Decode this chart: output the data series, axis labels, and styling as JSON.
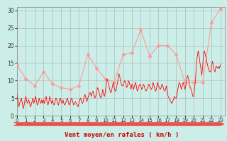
{
  "bg_color": "#cceee8",
  "grid_color": "#aaaaaa",
  "line1_color": "#ff0000",
  "line2_color": "#ff9999",
  "xlabel": "Vent moyen/en rafales ( km/h )",
  "xlabel_color": "#cc0000",
  "xlim": [
    0,
    23.5
  ],
  "ylim": [
    0,
    31
  ],
  "yticks": [
    0,
    5,
    10,
    15,
    20,
    25,
    30
  ],
  "xticks": [
    0,
    1,
    2,
    3,
    4,
    5,
    6,
    7,
    8,
    9,
    10,
    11,
    12,
    13,
    14,
    15,
    16,
    17,
    18,
    19,
    20,
    21,
    22,
    23
  ],
  "mean_x": [
    0,
    1,
    2,
    3,
    4,
    5,
    6,
    7,
    8,
    9,
    10,
    11,
    12,
    13,
    14,
    15,
    16,
    17,
    18,
    19,
    20,
    21,
    22,
    23
  ],
  "mean_y": [
    14.5,
    10.5,
    8.5,
    12.5,
    9.0,
    8.0,
    7.5,
    8.5,
    17.5,
    13.5,
    10.5,
    9.5,
    17.5,
    18.0,
    24.5,
    17.0,
    20.0,
    20.0,
    17.5,
    9.5,
    9.5,
    9.5,
    26.5,
    30.5
  ],
  "wind_x": [
    0.0,
    0.1,
    0.2,
    0.3,
    0.4,
    0.5,
    0.6,
    0.7,
    0.8,
    0.9,
    1.0,
    1.1,
    1.2,
    1.3,
    1.4,
    1.5,
    1.6,
    1.7,
    1.8,
    1.9,
    2.0,
    2.1,
    2.2,
    2.3,
    2.4,
    2.5,
    2.6,
    2.7,
    2.8,
    2.9,
    3.0,
    3.1,
    3.2,
    3.3,
    3.4,
    3.5,
    3.6,
    3.7,
    3.8,
    3.9,
    4.0,
    4.1,
    4.2,
    4.3,
    4.4,
    4.5,
    4.6,
    4.7,
    4.8,
    4.9,
    5.0,
    5.1,
    5.2,
    5.3,
    5.4,
    5.5,
    5.6,
    5.7,
    5.8,
    5.9,
    6.0,
    6.1,
    6.2,
    6.3,
    6.4,
    6.5,
    6.6,
    6.7,
    6.8,
    6.9,
    7.0,
    7.1,
    7.2,
    7.3,
    7.4,
    7.5,
    7.6,
    7.7,
    7.8,
    7.9,
    8.0,
    8.1,
    8.2,
    8.3,
    8.4,
    8.5,
    8.6,
    8.7,
    8.8,
    8.9,
    9.0,
    9.1,
    9.2,
    9.3,
    9.4,
    9.5,
    9.6,
    9.7,
    9.8,
    9.9,
    10.0,
    10.1,
    10.2,
    10.3,
    10.4,
    10.5,
    10.6,
    10.7,
    10.8,
    10.9,
    11.0,
    11.1,
    11.2,
    11.3,
    11.4,
    11.5,
    11.6,
    11.7,
    11.8,
    11.9,
    12.0,
    12.1,
    12.2,
    12.3,
    12.4,
    12.5,
    12.6,
    12.7,
    12.8,
    12.9,
    13.0,
    13.1,
    13.2,
    13.3,
    13.4,
    13.5,
    13.6,
    13.7,
    13.8,
    13.9,
    14.0,
    14.1,
    14.2,
    14.3,
    14.4,
    14.5,
    14.6,
    14.7,
    14.8,
    14.9,
    15.0,
    15.1,
    15.2,
    15.3,
    15.4,
    15.5,
    15.6,
    15.7,
    15.8,
    15.9,
    16.0,
    16.1,
    16.2,
    16.3,
    16.4,
    16.5,
    16.6,
    16.7,
    16.8,
    16.9,
    17.0,
    17.1,
    17.2,
    17.3,
    17.4,
    17.5,
    17.6,
    17.7,
    17.8,
    17.9,
    18.0,
    18.1,
    18.2,
    18.3,
    18.4,
    18.5,
    18.6,
    18.7,
    18.8,
    18.9,
    19.0,
    19.1,
    19.2,
    19.3,
    19.4,
    19.5,
    19.6,
    19.7,
    19.8,
    19.9,
    20.0,
    20.1,
    20.2,
    20.3,
    20.4,
    20.5,
    20.6,
    20.7,
    20.8,
    20.9,
    21.0,
    21.1,
    21.2,
    21.3,
    21.4,
    21.5,
    21.6,
    21.7,
    21.8,
    21.9,
    22.0,
    22.1,
    22.2,
    22.3,
    22.4,
    22.5,
    22.6,
    22.7,
    22.8,
    22.9,
    23.0
  ],
  "wind_y": [
    6.0,
    4.5,
    2.5,
    3.5,
    4.5,
    5.0,
    3.5,
    2.0,
    3.0,
    4.5,
    5.5,
    4.0,
    3.5,
    4.5,
    4.0,
    2.5,
    3.0,
    4.0,
    5.0,
    3.5,
    4.5,
    5.5,
    4.0,
    3.0,
    3.5,
    5.0,
    4.0,
    3.5,
    4.5,
    3.5,
    4.5,
    3.5,
    4.5,
    5.5,
    4.0,
    3.0,
    4.0,
    5.5,
    4.5,
    3.5,
    4.5,
    3.5,
    3.0,
    4.0,
    5.0,
    4.5,
    3.5,
    3.0,
    4.5,
    5.0,
    4.0,
    3.5,
    4.5,
    3.5,
    3.0,
    3.5,
    4.5,
    5.0,
    4.0,
    3.0,
    3.5,
    4.5,
    5.0,
    4.0,
    3.0,
    3.5,
    4.0,
    3.5,
    3.0,
    2.5,
    3.5,
    4.5,
    5.0,
    4.0,
    3.5,
    4.0,
    5.5,
    6.0,
    5.0,
    4.0,
    5.0,
    5.5,
    6.5,
    6.5,
    5.5,
    6.5,
    7.0,
    6.0,
    5.0,
    5.5,
    6.5,
    8.0,
    7.5,
    6.5,
    5.5,
    5.0,
    6.0,
    7.5,
    6.0,
    5.5,
    7.0,
    9.5,
    10.5,
    9.5,
    8.5,
    7.5,
    6.5,
    7.0,
    8.5,
    9.5,
    8.0,
    7.0,
    7.0,
    8.5,
    10.0,
    12.0,
    11.5,
    10.0,
    9.0,
    8.5,
    8.5,
    9.5,
    10.0,
    9.0,
    8.0,
    8.5,
    10.0,
    9.5,
    8.5,
    7.5,
    9.0,
    8.5,
    7.5,
    8.5,
    9.5,
    8.5,
    7.0,
    7.5,
    8.5,
    9.0,
    8.5,
    7.5,
    8.0,
    9.0,
    8.5,
    7.5,
    7.0,
    7.5,
    8.0,
    9.0,
    8.5,
    8.0,
    7.5,
    8.0,
    9.5,
    8.5,
    7.5,
    7.0,
    8.0,
    9.5,
    8.5,
    8.0,
    7.5,
    8.0,
    9.0,
    8.5,
    7.5,
    7.0,
    7.5,
    8.5,
    6.5,
    5.5,
    5.0,
    4.5,
    4.0,
    3.5,
    4.0,
    4.5,
    5.5,
    5.0,
    5.0,
    6.0,
    7.5,
    9.0,
    9.5,
    8.5,
    7.5,
    8.5,
    9.5,
    8.5,
    7.5,
    8.5,
    10.5,
    11.5,
    10.5,
    9.0,
    8.0,
    7.5,
    6.5,
    5.5,
    5.5,
    8.0,
    10.5,
    15.0,
    17.0,
    18.5,
    17.0,
    15.0,
    13.5,
    11.5,
    14.0,
    17.0,
    18.5,
    17.5,
    16.5,
    15.0,
    14.0,
    13.0,
    12.5,
    12.5,
    14.0,
    15.5,
    14.5,
    13.0,
    12.5,
    14.0,
    14.0,
    13.5,
    14.0,
    13.5,
    14.5
  ]
}
